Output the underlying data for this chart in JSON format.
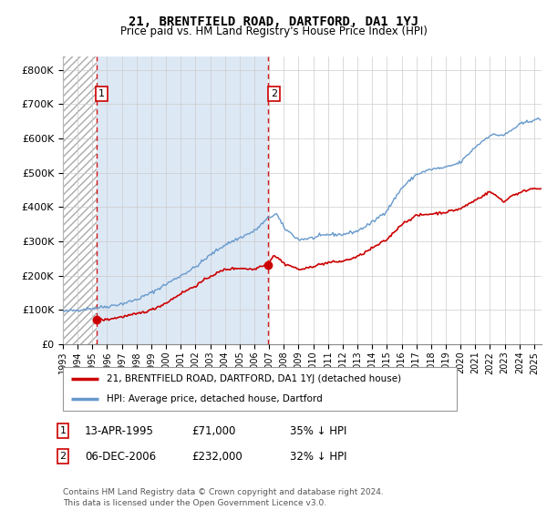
{
  "title": "21, BRENTFIELD ROAD, DARTFORD, DA1 1YJ",
  "subtitle": "Price paid vs. HM Land Registry's House Price Index (HPI)",
  "hpi_label": "HPI: Average price, detached house, Dartford",
  "property_label": "21, BRENTFIELD ROAD, DARTFORD, DA1 1YJ (detached house)",
  "sale1_date": "13-APR-1995",
  "sale1_price": 71000,
  "sale1_pct": "35% ↓ HPI",
  "sale2_date": "06-DEC-2006",
  "sale2_price": 232000,
  "sale2_pct": "32% ↓ HPI",
  "footnote": "Contains HM Land Registry data © Crown copyright and database right 2024.\nThis data is licensed under the Open Government Licence v3.0.",
  "ylim": [
    0,
    840000
  ],
  "yticks": [
    0,
    100000,
    200000,
    300000,
    400000,
    500000,
    600000,
    700000,
    800000
  ],
  "ytick_labels": [
    "£0",
    "£100K",
    "£200K",
    "£300K",
    "£400K",
    "£500K",
    "£600K",
    "£700K",
    "£800K"
  ],
  "property_color": "#cc0000",
  "hpi_color": "#6699cc",
  "dashed_line_color": "#cc0000",
  "grid_color": "#cccccc",
  "bg_between_color": "#dde8f5",
  "sale1_x_year": 1995.28,
  "sale2_x_year": 2006.95,
  "xmin": 1993.0,
  "xmax": 2025.5,
  "hpi_anchors_x": [
    1993,
    1994,
    1995,
    1996,
    1997,
    1998,
    1999,
    2000,
    2001,
    2002,
    2003,
    2004,
    2005,
    2006,
    2007,
    2007.5,
    2008,
    2009,
    2010,
    2011,
    2012,
    2013,
    2014,
    2015,
    2016,
    2017,
    2018,
    2019,
    2020,
    2021,
    2022,
    2023,
    2024,
    2025
  ],
  "hpi_anchors_y": [
    95000,
    100000,
    105000,
    110000,
    118000,
    130000,
    150000,
    175000,
    200000,
    225000,
    260000,
    290000,
    310000,
    330000,
    370000,
    380000,
    340000,
    305000,
    310000,
    320000,
    320000,
    330000,
    355000,
    390000,
    455000,
    495000,
    510000,
    515000,
    530000,
    575000,
    610000,
    610000,
    640000,
    655000
  ],
  "prop_anchors_x": [
    1995.28,
    1996,
    1997,
    1998,
    1999,
    2000,
    2001,
    2002,
    2003,
    2004,
    2005,
    2006,
    2006.5,
    2006.92,
    2007.3,
    2007.8,
    2008,
    2008.5,
    2009,
    2009.5,
    2010,
    2011,
    2012,
    2013,
    2014,
    2015,
    2016,
    2017,
    2018,
    2019,
    2020,
    2021,
    2022,
    2023,
    2023.5,
    2024,
    2024.5,
    2025
  ],
  "prop_anchors_y": [
    71000,
    72000,
    80000,
    88000,
    100000,
    120000,
    148000,
    170000,
    198000,
    218000,
    222000,
    218000,
    230000,
    232000,
    260000,
    245000,
    235000,
    228000,
    218000,
    220000,
    228000,
    238000,
    242000,
    255000,
    280000,
    305000,
    350000,
    375000,
    380000,
    385000,
    395000,
    420000,
    445000,
    415000,
    435000,
    440000,
    450000,
    455000
  ]
}
